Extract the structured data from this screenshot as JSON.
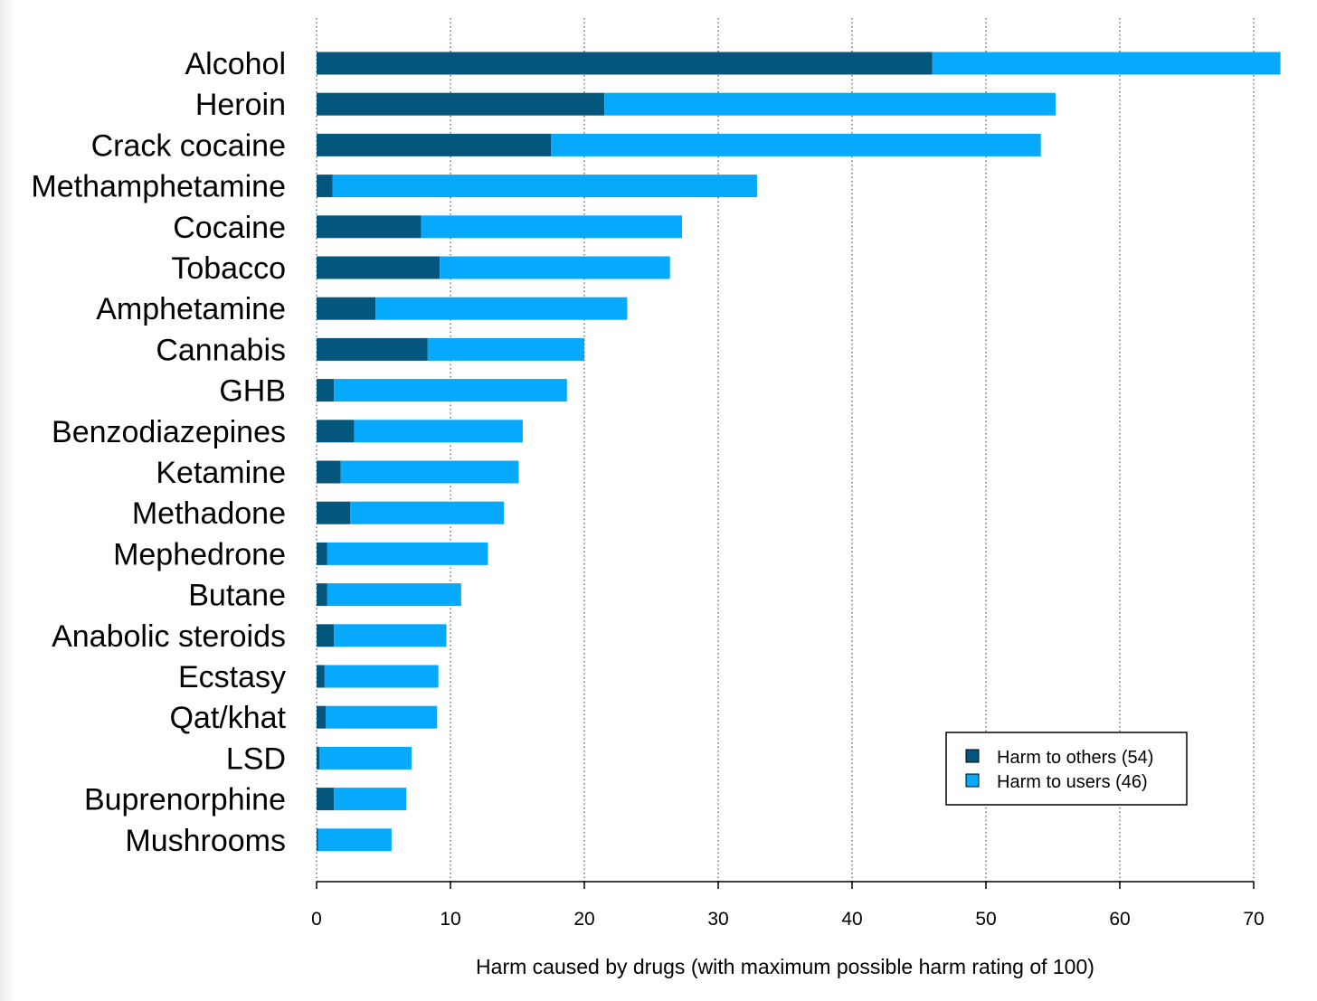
{
  "chart_data": {
    "type": "bar",
    "orientation": "horizontal",
    "stacked": true,
    "xlabel": "Harm caused by drugs (with maximum possible harm rating of 100)",
    "xlim": [
      0,
      72
    ],
    "xticks": [
      0,
      10,
      20,
      30,
      40,
      50,
      60,
      70
    ],
    "grid": "vertical dotted",
    "legend_position": "bottom-right",
    "categories": [
      "Alcohol",
      "Heroin",
      "Crack cocaine",
      "Methamphetamine",
      "Cocaine",
      "Tobacco",
      "Amphetamine",
      "Cannabis",
      "GHB",
      "Benzodiazepines",
      "Ketamine",
      "Methadone",
      "Mephedrone",
      "Butane",
      "Anabolic steroids",
      "Ecstasy",
      "Qat/khat",
      "LSD",
      "Buprenorphine",
      "Mushrooms"
    ],
    "series": [
      {
        "name": "Harm to others (54)",
        "color": "#04567c",
        "values": [
          46,
          21.5,
          17.5,
          1.2,
          7.8,
          9.2,
          4.4,
          8.3,
          1.3,
          2.8,
          1.8,
          2.5,
          0.8,
          0.8,
          1.3,
          0.6,
          0.7,
          0.2,
          1.3,
          0.1
        ]
      },
      {
        "name": "Harm to users (46)",
        "color": "#06a9fc",
        "values": [
          26,
          33.7,
          36.6,
          31.7,
          19.5,
          17.2,
          18.8,
          11.7,
          17.4,
          12.6,
          13.3,
          11.5,
          12.0,
          10.0,
          8.4,
          8.5,
          8.3,
          6.9,
          5.4,
          5.5
        ]
      }
    ]
  }
}
